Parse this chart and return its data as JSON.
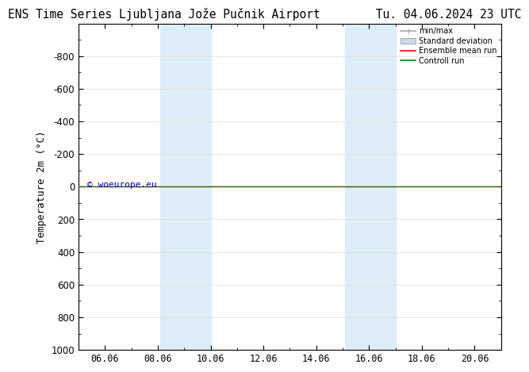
{
  "title_left": "ENS Time Series Ljubljana Jože Pučnik Airport",
  "title_right": "Tu. 04.06.2024 23 UTC",
  "ylabel": "Temperature 2m (°C)",
  "ylim_bottom": 1000,
  "ylim_top": -1000,
  "x_tick_positions": [
    6,
    8,
    10,
    12,
    14,
    16,
    18,
    20
  ],
  "x_ticks": [
    "06.06",
    "08.06",
    "10.06",
    "12.06",
    "14.06",
    "16.06",
    "18.06",
    "20.06"
  ],
  "xlim": [
    5.0,
    21.0
  ],
  "y_ticks": [
    -800,
    -600,
    -400,
    -200,
    0,
    200,
    400,
    600,
    800,
    1000
  ],
  "horizontal_line_color_red": "#ff0000",
  "horizontal_line_color_green": "#008000",
  "shaded_regions": [
    {
      "x_start": 8.083,
      "x_end": 10.0,
      "color": "#ddeef8"
    },
    {
      "x_start": 15.083,
      "x_end": 17.0,
      "color": "#ddeef8"
    }
  ],
  "watermark": "© woeurope.eu",
  "watermark_color": "#0000cc",
  "legend_items": [
    {
      "label": "min/max",
      "color": "#aaaaaa",
      "lw": 1.2
    },
    {
      "label": "Standard deviation",
      "color": "#c8dce8",
      "lw": 8
    },
    {
      "label": "Ensemble mean run",
      "color": "#ff0000",
      "lw": 1.2
    },
    {
      "label": "Controll run",
      "color": "#008000",
      "lw": 1.2
    }
  ],
  "bg_color": "#ffffff",
  "grid_color": "#dddddd",
  "tick_label_fontsize": 8.5,
  "title_fontsize": 10.5,
  "ylabel_fontsize": 9
}
